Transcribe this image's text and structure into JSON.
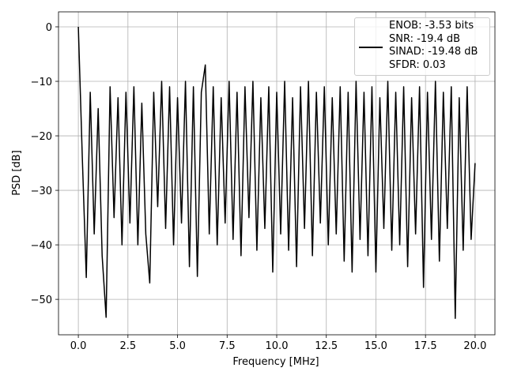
{
  "chart_data": {
    "type": "line",
    "xlabel": "Frequency [MHz]",
    "ylabel": "PSD [dB]",
    "x": [
      0,
      0.2,
      0.4,
      0.6,
      0.8,
      1.0,
      1.2,
      1.4,
      1.6,
      1.8,
      2.0,
      2.2,
      2.4,
      2.6,
      2.8,
      3.0,
      3.2,
      3.4,
      3.6,
      3.8,
      4.0,
      4.2,
      4.4,
      4.6,
      4.8,
      5.0,
      5.2,
      5.4,
      5.6,
      5.8,
      6.0,
      6.2,
      6.4,
      6.6,
      6.8,
      7.0,
      7.2,
      7.4,
      7.6,
      7.8,
      8.0,
      8.2,
      8.4,
      8.6,
      8.8,
      9.0,
      9.2,
      9.4,
      9.6,
      9.8,
      10.0,
      10.2,
      10.4,
      10.6,
      10.8,
      11.0,
      11.2,
      11.4,
      11.6,
      11.8,
      12.0,
      12.2,
      12.4,
      12.6,
      12.8,
      13.0,
      13.2,
      13.4,
      13.6,
      13.8,
      14.0,
      14.2,
      14.4,
      14.6,
      14.8,
      15.0,
      15.2,
      15.4,
      15.6,
      15.8,
      16.0,
      16.2,
      16.4,
      16.6,
      16.8,
      17.0,
      17.2,
      17.4,
      17.6,
      17.8,
      18.0,
      18.2,
      18.4,
      18.6,
      18.8,
      19.0,
      19.2,
      19.4,
      19.6,
      19.8,
      20.0
    ],
    "series": [
      {
        "name": "ENOB: -3.53 bits\nSNR: -19.4 dB\nSINAD: -19.48 dB\nSFDR: 0.03",
        "color": "#000000",
        "values": [
          0,
          -24,
          -46,
          -12,
          -38,
          -15,
          -42,
          -53.3,
          -11,
          -35,
          -13,
          -40,
          -12,
          -36,
          -11,
          -40,
          -14,
          -38,
          -47,
          -12,
          -33,
          -10,
          -37,
          -11,
          -40,
          -13,
          -36,
          -10,
          -44,
          -11,
          -45.8,
          -12,
          -7,
          -38,
          -11,
          -40,
          -13,
          -36,
          -10,
          -39,
          -12,
          -42,
          -11,
          -35,
          -10,
          -41,
          -13,
          -37,
          -11,
          -45,
          -12,
          -38,
          -10,
          -41,
          -13,
          -44,
          -11,
          -37,
          -10,
          -42,
          -12,
          -36,
          -11,
          -40,
          -13,
          -38,
          -11,
          -43,
          -12,
          -45,
          -10,
          -39,
          -12,
          -42,
          -11,
          -45,
          -13,
          -37,
          -10,
          -41,
          -12,
          -40,
          -11,
          -44,
          -13,
          -38,
          -11,
          -47.8,
          -12,
          -39,
          -10,
          -43,
          -12,
          -37,
          -11,
          -53.5,
          -13,
          -41,
          -11,
          -39,
          -25
        ]
      }
    ],
    "xlim": [
      -1.0,
      21.0
    ],
    "ylim": [
      -56.5,
      2.75
    ],
    "xticks": [
      {
        "value": 0,
        "label": "0.0"
      },
      {
        "value": 2.5,
        "label": "2.5"
      },
      {
        "value": 5,
        "label": "5.0"
      },
      {
        "value": 7.5,
        "label": "7.5"
      },
      {
        "value": 10,
        "label": "10.0"
      },
      {
        "value": 12.5,
        "label": "12.5"
      },
      {
        "value": 15,
        "label": "15.0"
      },
      {
        "value": 17.5,
        "label": "17.5"
      },
      {
        "value": 20,
        "label": "20.0"
      }
    ],
    "yticks": [
      {
        "value": -50,
        "label": "−50"
      },
      {
        "value": -40,
        "label": "−40"
      },
      {
        "value": -30,
        "label": "−30"
      },
      {
        "value": -20,
        "label": "−20"
      },
      {
        "value": -10,
        "label": "−10"
      },
      0
    ],
    "grid": true,
    "legend_loc": "upper right"
  }
}
